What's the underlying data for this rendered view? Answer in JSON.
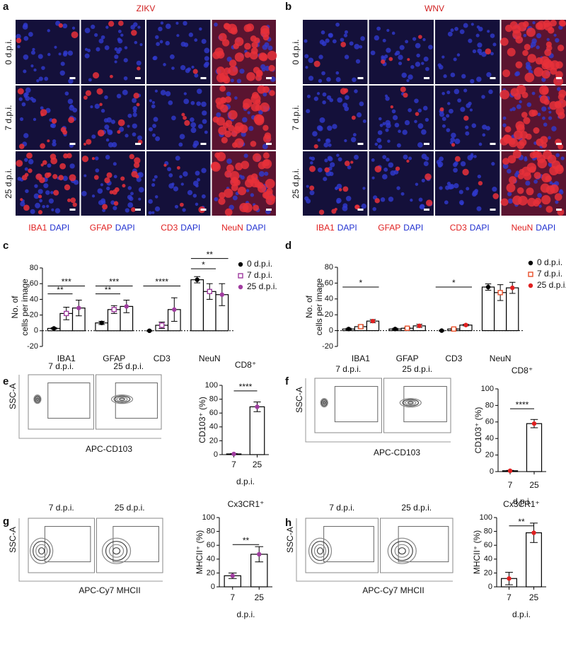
{
  "image_panels": [
    {
      "panel": "a",
      "title": "ZIKV",
      "rows": [
        "0 d.p.i.",
        "7 d.p.i.",
        "25 d.p.i."
      ],
      "stains": [
        [
          "IBA1",
          "DAPI"
        ],
        [
          "GFAP",
          "DAPI"
        ],
        [
          "CD3",
          "DAPI"
        ],
        [
          "NeuN",
          "DAPI"
        ]
      ]
    },
    {
      "panel": "b",
      "title": "WNV",
      "rows": [
        "0 d.p.i.",
        "7 d.p.i.",
        "25 d.p.i."
      ],
      "stains": [
        [
          "IBA1",
          "DAPI"
        ],
        [
          "GFAP",
          "DAPI"
        ],
        [
          "CD3",
          "DAPI"
        ],
        [
          "NeuN",
          "DAPI"
        ]
      ]
    }
  ],
  "chart_data": [
    {
      "panel": "c",
      "type": "bar",
      "y_label": [
        "No. of",
        "cells per image"
      ],
      "categories": [
        "IBA1",
        "GFAP",
        "CD3",
        "NeuN"
      ],
      "series": [
        {
          "name": "0 d.p.i.",
          "color": "#000000",
          "style": "filled",
          "values": [
            3,
            10,
            0,
            65
          ],
          "errors": [
            1,
            2,
            0.5,
            4
          ]
        },
        {
          "name": "7 d.p.i.",
          "color": "#a03ca0",
          "style": "open",
          "values": [
            22,
            27,
            7,
            50
          ],
          "errors": [
            8,
            5,
            4,
            10
          ]
        },
        {
          "name": "25 d.p.i.",
          "color": "#a03ca0",
          "style": "filled",
          "values": [
            29,
            31,
            27,
            46
          ],
          "errors": [
            10,
            8,
            15,
            14
          ]
        }
      ],
      "ylim": [
        -20,
        80
      ],
      "yticks": [
        -20,
        0,
        20,
        40,
        60,
        80
      ],
      "annotations": [
        "***",
        "**",
        "***",
        "**",
        "****",
        "**",
        "*"
      ]
    },
    {
      "panel": "d",
      "type": "bar",
      "y_label": [
        "No. of",
        "cells per image"
      ],
      "categories": [
        "IBA1",
        "GFAP",
        "CD3",
        "NeuN"
      ],
      "series": [
        {
          "name": "0 d.p.i.",
          "color": "#000000",
          "style": "filled",
          "values": [
            2,
            2,
            0,
            55
          ],
          "errors": [
            1,
            1,
            0.5,
            4
          ]
        },
        {
          "name": "7 d.p.i.",
          "color": "#e8502a",
          "style": "open",
          "values": [
            5,
            3,
            2,
            48
          ],
          "errors": [
            2,
            1,
            1,
            10
          ]
        },
        {
          "name": "25 d.p.i.",
          "color": "#e02020",
          "style": "filled",
          "values": [
            12,
            6,
            7,
            54
          ],
          "errors": [
            2,
            2,
            1,
            7
          ]
        }
      ],
      "ylim": [
        -20,
        80
      ],
      "yticks": [
        -20,
        0,
        20,
        40,
        60,
        80
      ],
      "annotations": [
        "*",
        "*"
      ]
    },
    {
      "type": "bar",
      "title": "CD8⁺",
      "y_label": "CD103⁺ (%)",
      "x_label": "d.p.i.",
      "categories": [
        "7",
        "25"
      ],
      "values": [
        1,
        69
      ],
      "errors": [
        0.5,
        7
      ],
      "color": "#a03ca0",
      "ylim": [
        0,
        100
      ],
      "yticks": [
        0,
        20,
        40,
        60,
        80,
        100
      ],
      "annotations": [
        "****"
      ]
    },
    {
      "type": "bar",
      "title": "CD8⁺",
      "y_label": "CD103⁺ (%)",
      "x_label": "d.p.i.",
      "categories": [
        "7",
        "25"
      ],
      "values": [
        1,
        58
      ],
      "errors": [
        0.5,
        5
      ],
      "color": "#e02020",
      "ylim": [
        0,
        100
      ],
      "yticks": [
        0,
        20,
        40,
        60,
        80,
        100
      ],
      "annotations": [
        "****"
      ]
    },
    {
      "type": "bar",
      "title": "Cx3CR1⁺",
      "y_label": "MHCII⁺ (%)",
      "x_label": "d.p.i.",
      "categories": [
        "7",
        "25"
      ],
      "values": [
        16,
        47
      ],
      "errors": [
        4,
        11
      ],
      "color": "#a03ca0",
      "ylim": [
        0,
        100
      ],
      "yticks": [
        0,
        20,
        40,
        60,
        80,
        100
      ],
      "annotations": [
        "**"
      ]
    },
    {
      "type": "bar",
      "title": "Cx3CR1⁺",
      "y_label": "MHCII⁺ (%)",
      "x_label": "d.p.i.",
      "categories": [
        "7",
        "25"
      ],
      "values": [
        12,
        78
      ],
      "errors": [
        9,
        14
      ],
      "color": "#e02020",
      "ylim": [
        0,
        100
      ],
      "yticks": [
        0,
        20,
        40,
        60,
        80,
        100
      ],
      "annotations": [
        "**"
      ]
    }
  ],
  "flow_panels": [
    {
      "panel": "e",
      "labels": [
        "7 d.p.i.",
        "25 d.p.i."
      ],
      "y_label": "SSC-A",
      "x_label": "APC-CD103"
    },
    {
      "panel": "f",
      "labels": [
        "7 d.p.i.",
        "25 d.p.i."
      ],
      "y_label": "SSC-A",
      "x_label": "APC-CD103"
    },
    {
      "panel": "g",
      "labels": [
        "7 d.p.i.",
        "25 d.p.i."
      ],
      "y_label": "SSC-A",
      "x_label": "APC-Cy7 MHCII"
    },
    {
      "panel": "h",
      "labels": [
        "7 d.p.i.",
        "25 d.p.i."
      ],
      "y_label": "SSC-A",
      "x_label": "APC-Cy7 MHCII"
    }
  ]
}
